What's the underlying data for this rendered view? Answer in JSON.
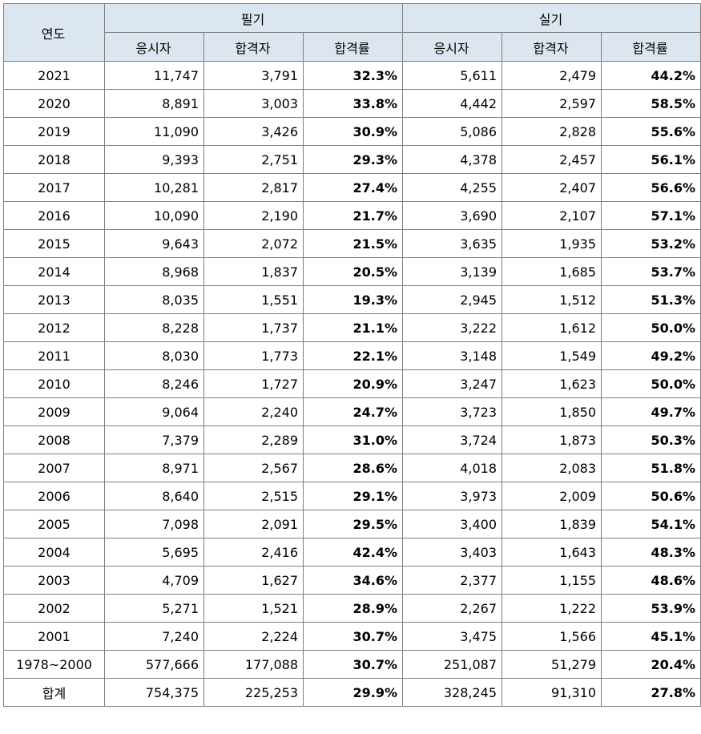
{
  "headers": {
    "year": "연도",
    "group_written": "필기",
    "group_practical": "실기",
    "applicants": "응시자",
    "passers": "합격자",
    "pass_rate": "합격률"
  },
  "rows": [
    [
      "2021",
      "11,747",
      "3,791",
      "32.3%",
      "5,611",
      "2,479",
      "44.2%"
    ],
    [
      "2020",
      "8,891",
      "3,003",
      "33.8%",
      "4,442",
      "2,597",
      "58.5%"
    ],
    [
      "2019",
      "11,090",
      "3,426",
      "30.9%",
      "5,086",
      "2,828",
      "55.6%"
    ],
    [
      "2018",
      "9,393",
      "2,751",
      "29.3%",
      "4,378",
      "2,457",
      "56.1%"
    ],
    [
      "2017",
      "10,281",
      "2,817",
      "27.4%",
      "4,255",
      "2,407",
      "56.6%"
    ],
    [
      "2016",
      "10,090",
      "2,190",
      "21.7%",
      "3,690",
      "2,107",
      "57.1%"
    ],
    [
      "2015",
      "9,643",
      "2,072",
      "21.5%",
      "3,635",
      "1,935",
      "53.2%"
    ],
    [
      "2014",
      "8,968",
      "1,837",
      "20.5%",
      "3,139",
      "1,685",
      "53.7%"
    ],
    [
      "2013",
      "8,035",
      "1,551",
      "19.3%",
      "2,945",
      "1,512",
      "51.3%"
    ],
    [
      "2012",
      "8,228",
      "1,737",
      "21.1%",
      "3,222",
      "1,612",
      "50.0%"
    ],
    [
      "2011",
      "8,030",
      "1,773",
      "22.1%",
      "3,148",
      "1,549",
      "49.2%"
    ],
    [
      "2010",
      "8,246",
      "1,727",
      "20.9%",
      "3,247",
      "1,623",
      "50.0%"
    ],
    [
      "2009",
      "9,064",
      "2,240",
      "24.7%",
      "3,723",
      "1,850",
      "49.7%"
    ],
    [
      "2008",
      "7,379",
      "2,289",
      "31.0%",
      "3,724",
      "1,873",
      "50.3%"
    ],
    [
      "2007",
      "8,971",
      "2,567",
      "28.6%",
      "4,018",
      "2,083",
      "51.8%"
    ],
    [
      "2006",
      "8,640",
      "2,515",
      "29.1%",
      "3,973",
      "2,009",
      "50.6%"
    ],
    [
      "2005",
      "7,098",
      "2,091",
      "29.5%",
      "3,400",
      "1,839",
      "54.1%"
    ],
    [
      "2004",
      "5,695",
      "2,416",
      "42.4%",
      "3,403",
      "1,643",
      "48.3%"
    ],
    [
      "2003",
      "4,709",
      "1,627",
      "34.6%",
      "2,377",
      "1,155",
      "48.6%"
    ],
    [
      "2002",
      "5,271",
      "1,521",
      "28.9%",
      "2,267",
      "1,222",
      "53.9%"
    ],
    [
      "2001",
      "7,240",
      "2,224",
      "30.7%",
      "3,475",
      "1,566",
      "45.1%"
    ],
    [
      "1978~2000",
      "577,666",
      "177,088",
      "30.7%",
      "251,087",
      "51,279",
      "20.4%"
    ],
    [
      "합계",
      "754,375",
      "225,253",
      "29.9%",
      "328,245",
      "91,310",
      "27.8%"
    ]
  ]
}
